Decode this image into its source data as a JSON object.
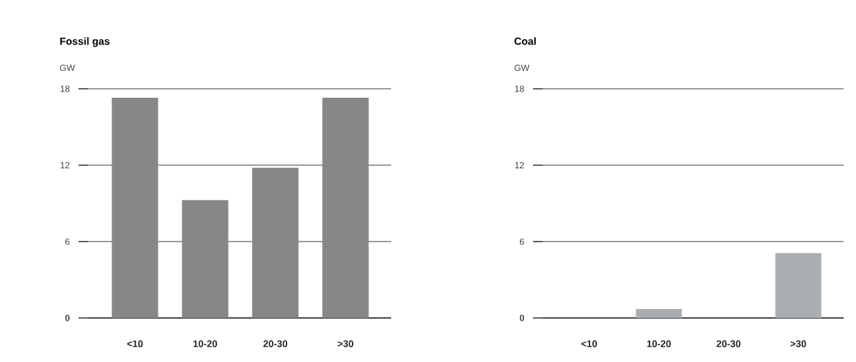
{
  "chart_data": [
    {
      "type": "bar",
      "title": "Fossil gas",
      "ylabel": "GW",
      "categories": [
        "<10",
        "10-20",
        "20-30",
        ">30"
      ],
      "values": [
        17.3,
        9.25,
        11.8,
        17.3
      ],
      "color": "#858789",
      "ylim": [
        0,
        18
      ],
      "yticks": [
        0,
        6,
        12,
        18
      ],
      "grid": "y"
    },
    {
      "type": "bar",
      "title": "Coal",
      "ylabel": "GW",
      "categories": [
        "<10",
        "10-20",
        "20-30",
        ">30"
      ],
      "values": [
        0,
        0.7,
        0,
        5.1
      ],
      "color": "#abaeb0",
      "ylim": [
        0,
        18
      ],
      "yticks": [
        0,
        6,
        12,
        18
      ],
      "grid": "y"
    }
  ]
}
